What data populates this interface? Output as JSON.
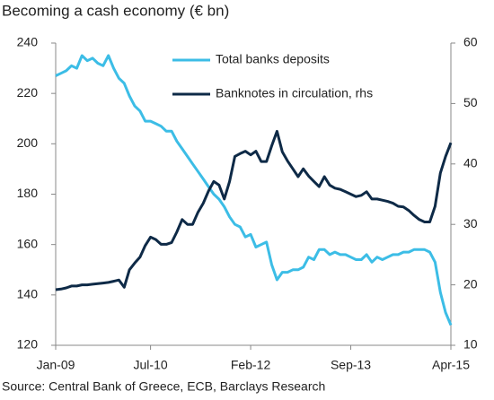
{
  "chart_data": {
    "type": "line",
    "title": "Becoming a cash economy (€ bn)",
    "source": "Source: Central Bank of Greece, ECB, Barclays Research",
    "categories": [
      "Jan-09",
      null,
      null,
      null,
      null,
      null,
      null,
      null,
      null,
      null,
      null,
      null,
      null,
      null,
      null,
      null,
      null,
      null,
      "Jul-10",
      null,
      null,
      null,
      null,
      null,
      null,
      null,
      null,
      null,
      null,
      null,
      null,
      null,
      null,
      null,
      null,
      null,
      null,
      "Feb-12",
      null,
      null,
      null,
      null,
      null,
      null,
      null,
      null,
      null,
      null,
      null,
      null,
      null,
      null,
      null,
      null,
      null,
      null,
      "Sep-13",
      null,
      null,
      null,
      null,
      null,
      null,
      null,
      null,
      null,
      null,
      null,
      null,
      null,
      null,
      null,
      null,
      null,
      null,
      "Apr-15"
    ],
    "series": [
      {
        "name": "Total banks deposits",
        "color": "#3cbde6",
        "values": [
          227,
          228,
          229,
          231,
          230,
          235,
          233,
          234,
          232,
          231,
          235,
          230,
          226,
          224,
          219,
          215,
          213,
          209,
          209,
          208,
          207,
          205,
          205,
          201,
          198,
          195,
          192,
          189,
          186,
          183,
          180,
          178,
          175,
          171,
          168,
          167,
          163,
          164,
          159,
          160,
          161,
          152,
          146,
          149,
          149,
          150,
          150,
          151,
          155,
          154,
          158,
          158,
          156,
          157,
          156,
          156,
          155,
          154,
          154,
          156,
          153,
          155,
          154,
          155,
          156,
          156,
          157,
          157,
          158,
          158,
          158,
          157,
          153,
          141,
          133,
          128
        ]
      },
      {
        "name": "Banknotes in circulation, rhs",
        "color": "#0e2a47",
        "axis": "y2",
        "values": [
          19.2,
          19.3,
          19.5,
          19.8,
          19.8,
          20,
          20,
          20.1,
          20.2,
          20.3,
          20.4,
          20.6,
          20.8,
          19.6,
          22.5,
          23.6,
          24.6,
          26.5,
          27.9,
          27.5,
          26.7,
          26.7,
          27,
          28.75,
          30.8,
          30,
          30,
          32,
          33.5,
          35.5,
          37.1,
          36.5,
          34.2,
          37.1,
          41.25,
          41.7,
          42.1,
          41.5,
          42.1,
          40.4,
          40.4,
          43,
          45.4,
          42,
          40.5,
          39.2,
          37.9,
          39.2,
          38,
          37.1,
          36.25,
          37.9,
          36.5,
          36,
          35.8,
          35.4,
          35,
          34.6,
          34.8,
          35.4,
          34.2,
          34.2,
          34,
          33.8,
          33.5,
          33,
          32.9,
          32.3,
          31.5,
          30.8,
          30.4,
          30.4,
          33,
          38.5,
          41.25,
          43.5
        ]
      }
    ],
    "ylim": [
      120,
      240
    ],
    "yticks": [
      120,
      140,
      160,
      180,
      200,
      220,
      240
    ],
    "y2lim": [
      10,
      60
    ],
    "y2ticks": [
      10,
      20,
      30,
      40,
      50,
      60
    ],
    "legend": "top",
    "grid": false
  }
}
